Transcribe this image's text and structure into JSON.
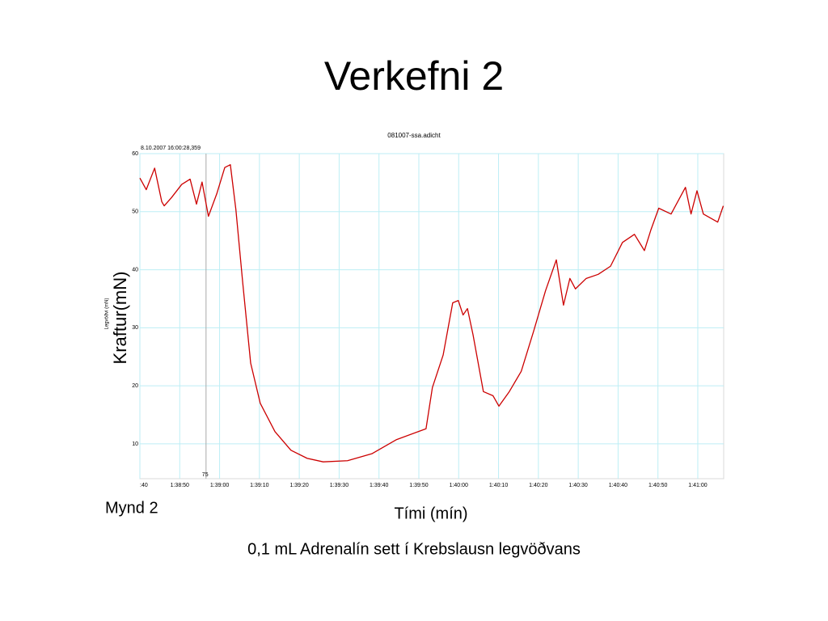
{
  "title": "Verkefni 2",
  "caption_left": "Mynd 2",
  "caption": "0,1 mL Adrenalín sett í Krebslausn legvöðvans",
  "chart_data": {
    "type": "line",
    "title": "081007-ssa.adicht",
    "timestamp": "8.10.2007 16:00:28,359",
    "ylabel": "Legvöðvi (mN)",
    "ylabel_overlay": "Kraftur(mN)",
    "xlabel": "Tími (mín)",
    "annotation": {
      "x": 16.6,
      "label": "75"
    },
    "xlim": [
      0,
      146.5
    ],
    "ylim": [
      4,
      60
    ],
    "xticks": [
      {
        "value": 0,
        "label": ":40"
      },
      {
        "value": 10,
        "label": "1:38:50"
      },
      {
        "value": 20,
        "label": "1:39:00"
      },
      {
        "value": 30,
        "label": "1:39:10"
      },
      {
        "value": 40,
        "label": "1:39:20"
      },
      {
        "value": 50,
        "label": "1:39:30"
      },
      {
        "value": 60,
        "label": "1:39:40"
      },
      {
        "value": 70,
        "label": "1:39:50"
      },
      {
        "value": 80,
        "label": "1:40:00"
      },
      {
        "value": 90,
        "label": "1:40:10"
      },
      {
        "value": 100,
        "label": "1:40:20"
      },
      {
        "value": 110,
        "label": "1:40:30"
      },
      {
        "value": 120,
        "label": "1:40:40"
      },
      {
        "value": 130,
        "label": "1:40:50"
      },
      {
        "value": 140,
        "label": "1:41:00"
      }
    ],
    "yticks": [
      10,
      20,
      30,
      40,
      50,
      60
    ],
    "grid": true,
    "series": [
      {
        "color": "#cc0000",
        "x": [
          0,
          1.6,
          3.7,
          5.5,
          6.1,
          7.9,
          10.5,
          12.6,
          14.2,
          15.6,
          17.2,
          19.3,
          21.3,
          22.7,
          24.1,
          25.8,
          27.8,
          30.2,
          33.9,
          37.9,
          42.0,
          46.0,
          52.1,
          58.2,
          64.3,
          71.8,
          73.4,
          76.1,
          78.5,
          79.9,
          81.1,
          82.2,
          83.6,
          86.2,
          88.6,
          90.1,
          92.7,
          95.7,
          98.8,
          101.8,
          104.5,
          106.3,
          107.9,
          109.3,
          112.0,
          115.0,
          118.1,
          121.1,
          124.1,
          126.6,
          128.2,
          130.2,
          133.3,
          136.9,
          138.3,
          139.8,
          141.4,
          145.0,
          146.4
        ],
        "values": [
          55.8,
          53.8,
          57.5,
          51.7,
          51,
          52.4,
          54.7,
          55.6,
          51.3,
          55.1,
          49.2,
          53.1,
          57.6,
          58.1,
          50.3,
          37.8,
          23.9,
          17.0,
          12.1,
          8.9,
          7.5,
          6.9,
          7.1,
          8.3,
          10.7,
          12.6,
          19.7,
          25.3,
          34.3,
          34.7,
          32.2,
          33.3,
          28.8,
          19.0,
          18.3,
          16.5,
          19.0,
          22.5,
          29.4,
          36.4,
          41.7,
          33.9,
          38.5,
          36.7,
          38.5,
          39.2,
          40.6,
          44.7,
          46.1,
          43.3,
          46.8,
          50.6,
          49.6,
          54.2,
          49.6,
          53.6,
          49.6,
          48.2,
          51.0
        ]
      }
    ]
  }
}
